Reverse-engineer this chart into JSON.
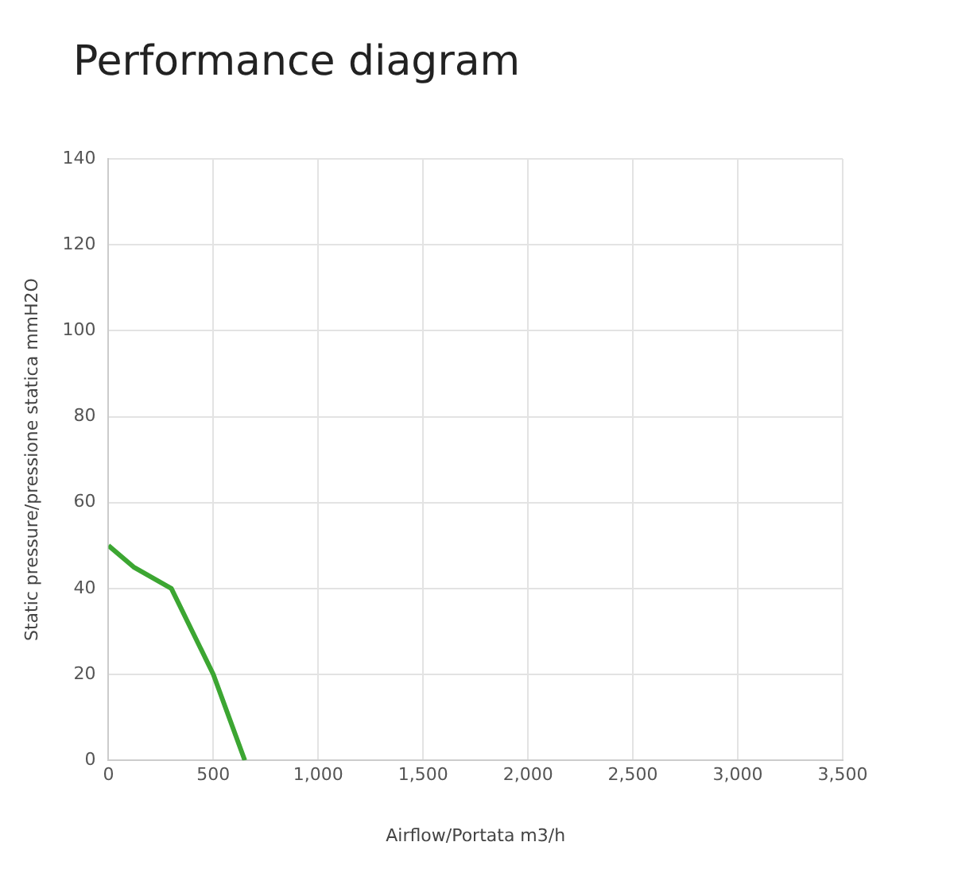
{
  "chart_data": {
    "type": "line",
    "title": "Performance diagram",
    "xlabel": "Airflow/Portata m3/h",
    "ylabel": "Static pressure/pressione statica mmH2O",
    "x": [
      0,
      120,
      300,
      400,
      500,
      650
    ],
    "series": [
      {
        "color": "#3ca632",
        "values": [
          50,
          45,
          40,
          30,
          20,
          0
        ]
      }
    ],
    "xlim": [
      0,
      3500
    ],
    "xticks": [
      0,
      500,
      {
        "value": 1000,
        "label": "1,000"
      },
      {
        "value": 1500,
        "label": "1,500"
      },
      {
        "value": 2000,
        "label": "2,000"
      },
      {
        "value": 2500,
        "label": "2,500"
      },
      {
        "value": 3000,
        "label": "3,000"
      },
      {
        "value": 3500,
        "label": "3,500"
      }
    ],
    "ylim": [
      0,
      140
    ],
    "yticks": [
      0,
      20,
      40,
      60,
      80,
      100,
      120,
      140
    ],
    "grid": true,
    "legend": false,
    "marker": "none",
    "line_style": "solid"
  }
}
